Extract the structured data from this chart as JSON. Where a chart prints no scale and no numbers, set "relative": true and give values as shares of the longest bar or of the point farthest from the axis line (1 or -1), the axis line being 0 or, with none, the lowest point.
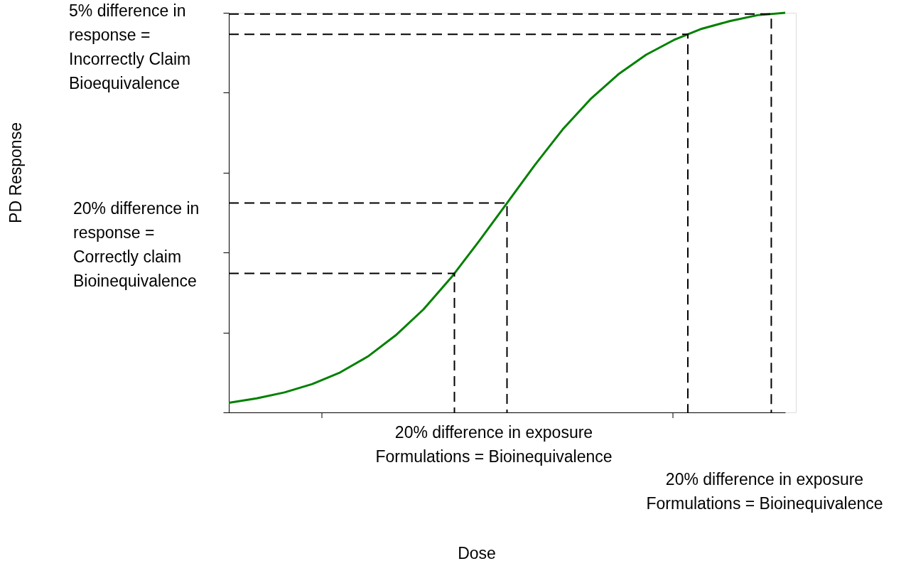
{
  "chart_data": {
    "type": "line",
    "relative": true,
    "tick_labels": false,
    "grid": false,
    "marker": "none",
    "categories": [
      null,
      null,
      null,
      null,
      null,
      null,
      null,
      null,
      null,
      null,
      null,
      null,
      null,
      null,
      null,
      null,
      null,
      null,
      null,
      null,
      null
    ],
    "series": [
      {
        "color": "#008000",
        "line_style": "solid",
        "values": [
          0.024,
          0.035,
          0.05,
          0.071,
          0.1,
          0.14,
          0.193,
          0.258,
          0.338,
          0.429,
          0.524,
          0.619,
          0.708,
          0.784,
          0.846,
          0.895,
          0.932,
          0.96,
          0.979,
          0.994,
          1.0
        ]
      }
    ],
    "ref_lines": [
      {
        "axis": "y",
        "value": 0.348,
        "color": "#000000",
        "line_style": "dashed"
      },
      {
        "axis": "y",
        "value": 0.524,
        "color": "#000000",
        "line_style": "dashed"
      },
      {
        "axis": "y",
        "value": 0.946,
        "color": "#000000",
        "line_style": "dashed"
      },
      {
        "axis": "y",
        "value": 0.997,
        "color": "#000000",
        "line_style": "dashed"
      }
    ],
    "annotations": [
      "5% difference in\nresponse =\nIncorrectly Claim\nBioequivalence",
      "20% difference in\nresponse =\nCorrectly claim\nBioinequivalence",
      "20% difference in exposure\nFormulations = Bioinequivalence",
      "20% difference in exposure\nFormulations = Bioinequivalence",
      "Dose",
      "PD Response"
    ]
  }
}
